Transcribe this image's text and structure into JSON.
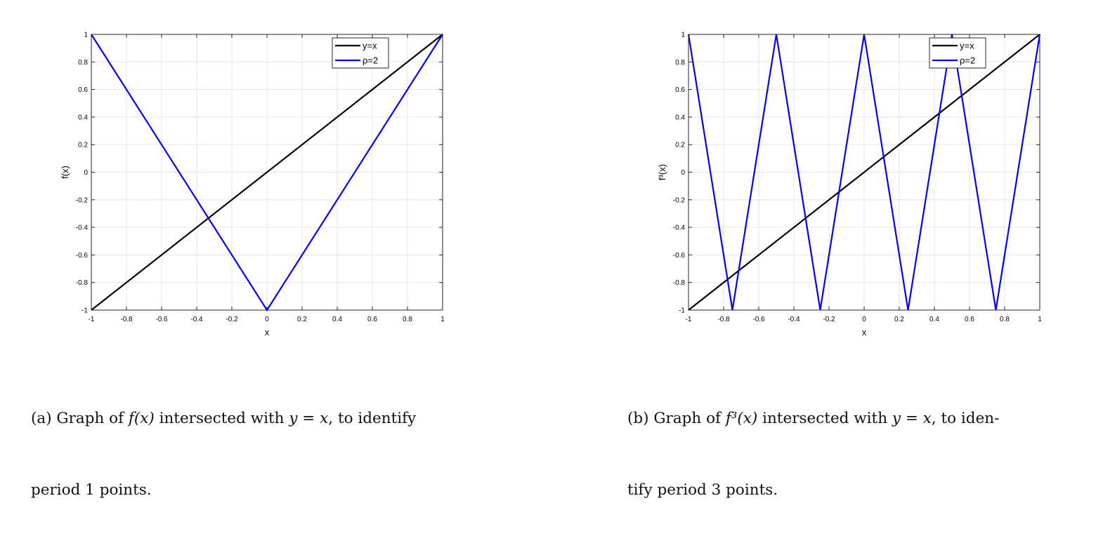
{
  "chart_data": [
    {
      "type": "line",
      "title": "",
      "xlabel": "x",
      "ylabel": "f(x)",
      "xlim": [
        -1,
        1
      ],
      "ylim": [
        -1,
        1
      ],
      "grid": true,
      "legend_placement": "top-right",
      "xticks": [
        "-1",
        "-0.8",
        "-0.6",
        "-0.4",
        "-0.2",
        "0",
        "0.2",
        "0.4",
        "0.6",
        "0.8",
        "1"
      ],
      "yticks": [
        "-1",
        "-0.8",
        "-0.6",
        "-0.4",
        "-0.2",
        "0",
        "0.2",
        "0.4",
        "0.6",
        "0.8",
        "1"
      ],
      "series": [
        {
          "name": "y=x",
          "color": "#000000",
          "x": [
            -1,
            1
          ],
          "y": [
            -1,
            1
          ]
        },
        {
          "name": "ρ=2",
          "color": "#0000ff",
          "x": [
            -1,
            0,
            1
          ],
          "y": [
            1,
            -1,
            1
          ]
        }
      ]
    },
    {
      "type": "line",
      "title": "",
      "xlabel": "x",
      "ylabel": "f³(x)",
      "xlim": [
        -1,
        1
      ],
      "ylim": [
        -1,
        1
      ],
      "grid": true,
      "legend_placement": "top-right",
      "xticks": [
        "-1",
        "-0.8",
        "-0.6",
        "-0.4",
        "-0.2",
        "0",
        "0.2",
        "0.4",
        "0.6",
        "0.8",
        "1"
      ],
      "yticks": [
        "-1",
        "-0.8",
        "-0.6",
        "-0.4",
        "-0.2",
        "0",
        "0.2",
        "0.4",
        "0.6",
        "0.8",
        "1"
      ],
      "series": [
        {
          "name": "y=x",
          "color": "#000000",
          "x": [
            -1,
            1
          ],
          "y": [
            -1,
            1
          ]
        },
        {
          "name": "ρ=2",
          "color": "#0000ff",
          "x": [
            -1,
            -0.75,
            -0.5,
            -0.25,
            0,
            0.25,
            0.5,
            0.75,
            1
          ],
          "y": [
            1,
            -1,
            1,
            -1,
            1,
            -1,
            1,
            -1,
            1
          ]
        }
      ]
    }
  ],
  "captions": {
    "a": {
      "line1_prefix": "(a) Graph of ",
      "line1_math1": "f(x)",
      "line1_mid": " intersected with ",
      "line1_math2": "y = x",
      "line1_suffix": ", to identify",
      "line2": "period 1 points."
    },
    "b": {
      "line1_prefix": "(b) Graph of ",
      "line1_math1": "f³(x)",
      "line1_mid": " intersected with ",
      "line1_math2": "y = x",
      "line1_suffix": ", to iden-",
      "line2": "tify period 3 points."
    }
  }
}
